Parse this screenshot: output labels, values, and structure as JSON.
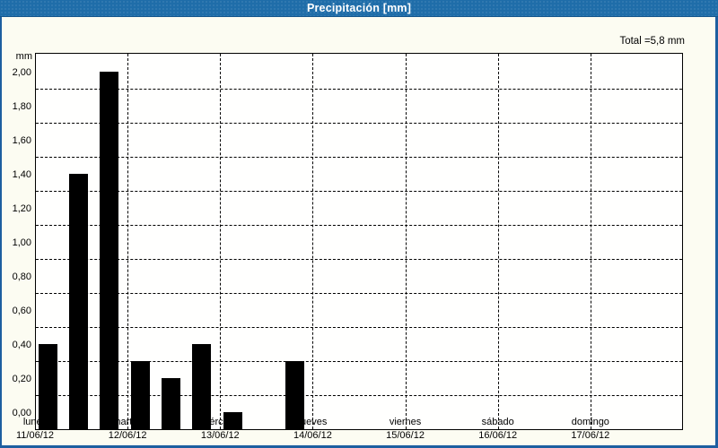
{
  "window": {
    "title": "Precipitación [mm]"
  },
  "header": {
    "total_label": "Total =5,8 mm"
  },
  "chart_data": {
    "type": "bar",
    "title": "Precipitación [mm]",
    "ylabel": "mm",
    "xlabel": "",
    "total_text": "Total =5,8 mm",
    "total_value_mm": 5.8,
    "ylim": [
      0,
      2.21
    ],
    "ytick_step": 0.2,
    "yticks": [
      0,
      0.2,
      0.4,
      0.6,
      0.8,
      1.0,
      1.2,
      1.4,
      1.6,
      1.8,
      2.0
    ],
    "ytick_labels": [
      "0,00",
      "0,20",
      "0,40",
      "0,60",
      "0,80",
      "1,00",
      "1,20",
      "1,40",
      "1,60",
      "1,80",
      "2,00"
    ],
    "grid": true,
    "legend": "none",
    "bars_per_day": 3,
    "days": [
      {
        "label": "lunes",
        "date": "11/06/12",
        "values": [
          0.5,
          1.5,
          2.1
        ]
      },
      {
        "label": "martes",
        "date": "12/06/12",
        "values": [
          0.4,
          0.3,
          0.5
        ]
      },
      {
        "label": "miércoles",
        "date": "13/06/12",
        "values": [
          0.1,
          0.0,
          0.4
        ]
      },
      {
        "label": "jueves",
        "date": "14/06/12",
        "values": [
          0.0,
          0.0,
          0.0
        ]
      },
      {
        "label": "viernes",
        "date": "15/06/12",
        "values": [
          0.0,
          0.0,
          0.0
        ]
      },
      {
        "label": "sábado",
        "date": "16/06/12",
        "values": [
          0.0,
          0.0,
          0.0
        ]
      },
      {
        "label": "domingo",
        "date": "17/06/12",
        "values": [
          0.0,
          0.0,
          0.0
        ]
      }
    ]
  },
  "colors": {
    "titlebar": "#1f6da9",
    "titlebar_text": "#ffffff",
    "frame_border": "#1d5fa0",
    "page_background": "#fcfcf2",
    "plot_background": "#fffffe",
    "bar": "#000000",
    "grid": "#000000"
  }
}
